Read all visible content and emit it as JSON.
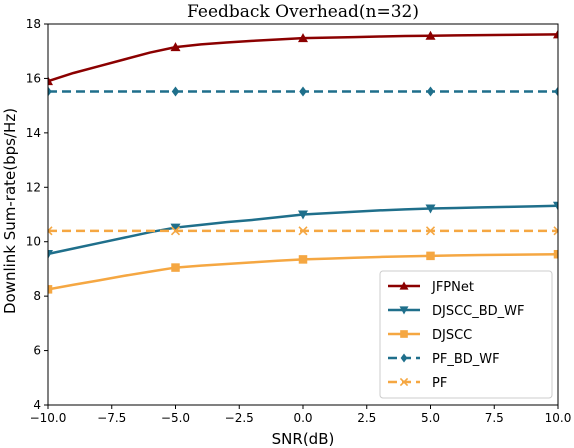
{
  "chart_data": {
    "type": "line",
    "title": "Feedback Overhead(n=32)",
    "xlabel": "SNR(dB)",
    "ylabel": "Downlink Sum-rate(bps/Hz)",
    "xlim": [
      -10,
      10
    ],
    "ylim": [
      4,
      18
    ],
    "xticks": [
      -10.0,
      -7.5,
      -5.0,
      -2.5,
      0.0,
      2.5,
      5.0,
      7.5,
      10.0
    ],
    "xtick_labels": [
      "−10.0",
      "−7.5",
      "−5.0",
      "−2.5",
      "0.0",
      "2.5",
      "5.0",
      "7.5",
      "10.0"
    ],
    "yticks": [
      4,
      6,
      8,
      10,
      12,
      14,
      16,
      18
    ],
    "ytick_labels": [
      "4",
      "6",
      "8",
      "10",
      "12",
      "14",
      "16",
      "18"
    ],
    "grid": false,
    "legend_position": "lower-right",
    "x": [
      -10,
      -9,
      -8,
      -7,
      -6,
      -5,
      -4,
      -3,
      -2,
      -1,
      0,
      1,
      2,
      3,
      4,
      5,
      6,
      7,
      8,
      9,
      10
    ],
    "marker_x": [
      -10,
      -5,
      0,
      5,
      10
    ],
    "series": [
      {
        "name": "JFPNet",
        "color": "#8b0000",
        "dash": "solid",
        "marker": "triangle-up",
        "values": [
          15.9,
          16.2,
          16.45,
          16.7,
          16.95,
          17.15,
          17.25,
          17.32,
          17.38,
          17.43,
          17.48,
          17.5,
          17.52,
          17.54,
          17.56,
          17.57,
          17.58,
          17.59,
          17.6,
          17.61,
          17.62
        ]
      },
      {
        "name": "DJSCC_BD_WF",
        "color": "#1f6f8b",
        "dash": "solid",
        "marker": "triangle-down",
        "values": [
          9.55,
          9.75,
          9.95,
          10.15,
          10.35,
          10.52,
          10.62,
          10.72,
          10.8,
          10.9,
          11.0,
          11.05,
          11.1,
          11.15,
          11.19,
          11.22,
          11.24,
          11.26,
          11.28,
          11.3,
          11.32
        ]
      },
      {
        "name": "DJSCC",
        "color": "#f5a742",
        "dash": "solid",
        "marker": "square",
        "values": [
          8.25,
          8.42,
          8.58,
          8.75,
          8.9,
          9.05,
          9.12,
          9.18,
          9.24,
          9.3,
          9.35,
          9.38,
          9.41,
          9.44,
          9.46,
          9.48,
          9.5,
          9.51,
          9.52,
          9.53,
          9.54
        ]
      },
      {
        "name": "PF_BD_WF",
        "color": "#1f6f8b",
        "dash": "dashed",
        "marker": "diamond",
        "values": [
          15.52,
          15.52,
          15.52,
          15.52,
          15.52,
          15.52,
          15.52,
          15.52,
          15.52,
          15.52,
          15.52,
          15.52,
          15.52,
          15.52,
          15.52,
          15.52,
          15.52,
          15.52,
          15.52,
          15.52,
          15.52
        ]
      },
      {
        "name": "PF",
        "color": "#f5a742",
        "dash": "dashed",
        "marker": "x",
        "values": [
          10.4,
          10.4,
          10.4,
          10.4,
          10.4,
          10.4,
          10.4,
          10.4,
          10.4,
          10.4,
          10.4,
          10.4,
          10.4,
          10.4,
          10.4,
          10.4,
          10.4,
          10.4,
          10.4,
          10.4,
          10.4
        ]
      }
    ]
  }
}
